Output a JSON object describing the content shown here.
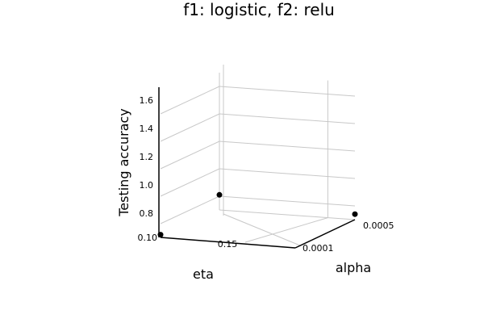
{
  "chart_data": {
    "type": "scatter",
    "title": "f1: logistic, f2: relu",
    "xlabel": "eta",
    "ylabel": "alpha",
    "zlabel": "Testing accuracy",
    "x_ticks": [
      "0.10",
      "0.15"
    ],
    "y_ticks": [
      "0.0001",
      "0.0005"
    ],
    "z_ticks": [
      "0.8",
      "1.0",
      "1.2",
      "1.4",
      "1.6"
    ],
    "zlim": [
      0.7,
      1.7
    ],
    "points": [
      {
        "eta": 0.1,
        "alpha": 0.0001,
        "accuracy": 0.72
      },
      {
        "eta": 0.1,
        "alpha": 0.0005,
        "accuracy": 0.81
      },
      {
        "eta": 0.15,
        "alpha": 0.0005,
        "accuracy": 0.74
      }
    ],
    "marker_color": "#000000",
    "grid": true,
    "legend": false
  }
}
